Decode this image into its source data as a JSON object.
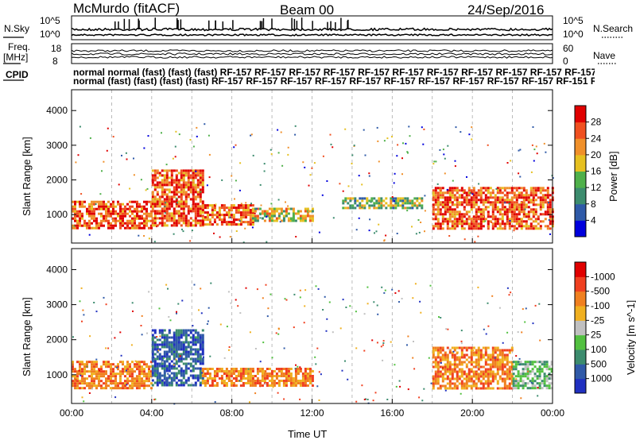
{
  "header": {
    "station": "McMurdo (fitACF)",
    "beam": "Beam 00",
    "date": "24/Sep/2016"
  },
  "panels": {
    "nsky_label": "N.Sky",
    "nsky_ticks": [
      "10^5",
      "10^0"
    ],
    "nsearch_label": "N.Search",
    "nsearch_ticks": [
      "10^5",
      "10^0"
    ],
    "freq_label": "Freq.",
    "freq_unit": "[MHz]",
    "freq_ticks": [
      "18",
      "8"
    ],
    "nave_label": "Nave",
    "nave_ticks": [
      "60",
      "0"
    ],
    "cpid_label": "CPID",
    "cpid_row1": "normal normal (fast) (fast) (fast) RF-157 RF-157 RF-157 RF-157 RF-157 RF-157 RF-157 RF-157 RF-157 RF-157 RF-157 RF-157 RF",
    "cpid_row2": "normal (fast) (fast) (fast) (fast) RF-157 RF-157 RF-157 RF-157 RF-157 RF-157 RF-157 RF-157 RF-157 RF-157 RF-151 RF"
  },
  "chart_data": [
    {
      "type": "heatmap",
      "name": "power",
      "ylabel": "Slant Range [km]",
      "xlabel": "",
      "x_ticks": [
        "00:00",
        "04:00",
        "08:00",
        "12:00",
        "16:00",
        "20:00",
        "00:00"
      ],
      "x_range_hours": [
        0,
        24
      ],
      "y_ticks": [
        1000,
        2000,
        3000,
        4000
      ],
      "ylim": [
        180,
        4600
      ],
      "colorbar_label": "Power [dB]",
      "colorbar_ticks": [
        4,
        8,
        12,
        16,
        20,
        24,
        28
      ],
      "colorbar_range": [
        0,
        32
      ],
      "colors": [
        "#0000dd",
        "#2f5aa8",
        "#3c8c6e",
        "#4fb04a",
        "#e6c020",
        "#f0902a",
        "#f05020",
        "#e00000"
      ],
      "regions": [
        {
          "t0": 0,
          "t1": 4,
          "r0": 600,
          "r1": 1400,
          "level": 22
        },
        {
          "t0": 4,
          "t1": 6.5,
          "r0": 700,
          "r1": 2300,
          "level": 24
        },
        {
          "t0": 6.5,
          "t1": 9,
          "r0": 700,
          "r1": 1300,
          "level": 22
        },
        {
          "t0": 9,
          "t1": 12,
          "r0": 800,
          "r1": 1200,
          "level": 14
        },
        {
          "t0": 13.5,
          "t1": 17.5,
          "r0": 1200,
          "r1": 1500,
          "level": 10
        },
        {
          "t0": 18,
          "t1": 24,
          "r0": 600,
          "r1": 1800,
          "level": 24
        }
      ]
    },
    {
      "type": "heatmap",
      "name": "velocity",
      "ylabel": "Slant Range [km]",
      "xlabel": "Time UT",
      "x_ticks": [
        "00:00",
        "04:00",
        "08:00",
        "12:00",
        "16:00",
        "20:00",
        "00:00"
      ],
      "x_range_hours": [
        0,
        24
      ],
      "y_ticks": [
        1000,
        2000,
        3000,
        4000
      ],
      "ylim": [
        180,
        4600
      ],
      "colorbar_label": "Velocity [m s^-1]",
      "colorbar_ticks": [
        "1000",
        "500",
        "100",
        "25",
        "-25",
        "-100",
        "-500",
        "-1000"
      ],
      "colors": [
        "#2030c0",
        "#305aa8",
        "#3c8c6e",
        "#52c040",
        "#c0c0c0",
        "#f0b020",
        "#f08020",
        "#f04020",
        "#e00000"
      ],
      "regions": [
        {
          "t0": 0,
          "t1": 4,
          "r0": 600,
          "r1": 1400,
          "level": "-100"
        },
        {
          "t0": 4,
          "t1": 6.5,
          "r0": 700,
          "r1": 2300,
          "level": "500"
        },
        {
          "t0": 6.5,
          "t1": 12,
          "r0": 700,
          "r1": 1200,
          "level": "-100"
        },
        {
          "t0": 18,
          "t1": 22,
          "r0": 600,
          "r1": 1800,
          "level": "-100"
        },
        {
          "t0": 22,
          "t1": 24,
          "r0": 600,
          "r1": 1400,
          "level": "100"
        }
      ]
    }
  ]
}
